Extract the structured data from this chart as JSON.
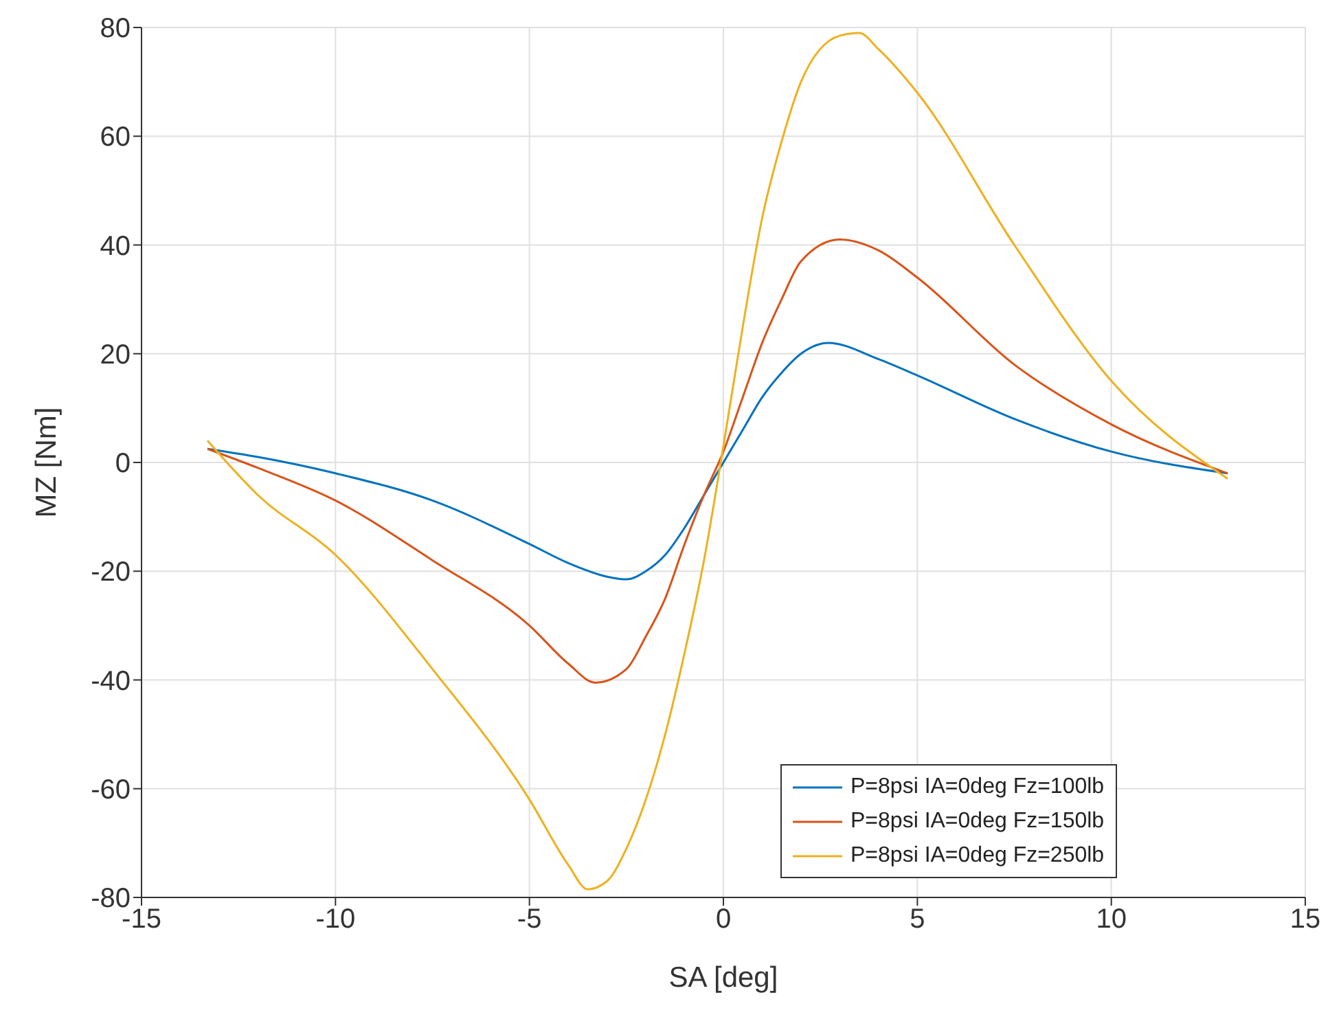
{
  "chart_data": {
    "type": "line",
    "xlabel": "SA [deg]",
    "ylabel": "MZ [Nm]",
    "xlim": [
      -15,
      15
    ],
    "xticks": [
      -15,
      -10,
      -5,
      0,
      5,
      10,
      15
    ],
    "ylim": [
      -80,
      80
    ],
    "yticks": [
      -80,
      -60,
      -40,
      -20,
      0,
      20,
      40,
      60,
      80
    ],
    "grid": true,
    "legend": "bottom right",
    "marker": "none",
    "line_style": "solid",
    "series": [
      {
        "name": "P=8psi IA=0deg Fz=100lb",
        "color": "#0072bd",
        "x": [
          -13.3,
          -12,
          -10,
          -7.5,
          -5,
          -4,
          -3,
          -2.5,
          -2,
          -1.5,
          -1,
          -0.5,
          0,
          0.5,
          1,
          1.5,
          2,
          2.7,
          4,
          5,
          7.5,
          10,
          13
        ],
        "values": [
          2.5,
          1,
          -2,
          -7,
          -15,
          -18.5,
          -21,
          -21.5,
          -20,
          -17,
          -12,
          -6,
          0,
          6,
          12,
          16.5,
          20,
          22,
          19,
          16,
          8,
          2,
          -2
        ]
      },
      {
        "name": "P=8psi IA=0deg Fz=150lb",
        "color": "#d95319",
        "x": [
          -13.3,
          -12,
          -10,
          -7.5,
          -5,
          -4,
          -3.3,
          -2.5,
          -2,
          -1.5,
          -1,
          -0.5,
          0,
          0.5,
          1,
          1.5,
          2,
          3,
          4,
          5,
          7.5,
          10,
          13
        ],
        "values": [
          2.5,
          -1,
          -7,
          -18,
          -30,
          -37,
          -40.5,
          -38,
          -32,
          -25,
          -15,
          -6,
          2,
          12,
          22,
          30,
          37,
          41,
          39,
          34,
          18,
          7,
          -2
        ]
      },
      {
        "name": "P=8psi IA=0deg Fz=250lb",
        "color": "#edb120",
        "x": [
          -13.3,
          -12,
          -10,
          -7.5,
          -5,
          -4,
          -3.5,
          -3,
          -2.5,
          -2,
          -1.5,
          -1,
          -0.5,
          0,
          0.5,
          1,
          1.5,
          2,
          3,
          3.5,
          4,
          5,
          7.5,
          10,
          13
        ],
        "values": [
          4,
          -6,
          -17,
          -38,
          -62,
          -74,
          -78.5,
          -77,
          -71,
          -62,
          -50,
          -35,
          -18,
          3,
          25,
          45,
          59,
          70,
          78.5,
          79,
          76,
          68,
          40,
          15,
          -3
        ]
      }
    ]
  }
}
